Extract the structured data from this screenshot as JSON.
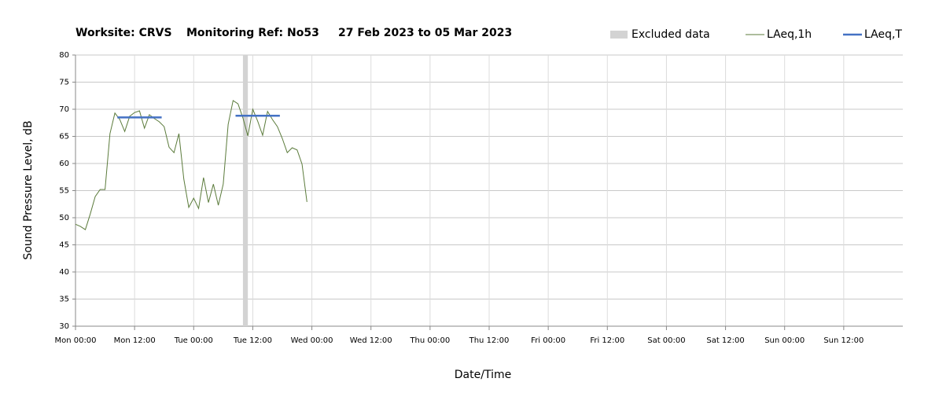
{
  "chart_data": {
    "type": "line",
    "title": [
      "Worksite: CRVS",
      "Monitoring Ref: No53",
      "27 Feb 2023 to 05 Mar 2023"
    ],
    "x_label": "Date/Time",
    "y_label": "Sound Pressure Level, dB",
    "xlim": [
      0,
      168
    ],
    "xticks": [
      {
        "value": 0,
        "label": "Mon 00:00"
      },
      {
        "value": 12,
        "label": "Mon 12:00"
      },
      {
        "value": 24,
        "label": "Tue 00:00"
      },
      {
        "value": 36,
        "label": "Tue 12:00"
      },
      {
        "value": 48,
        "label": "Wed 00:00"
      },
      {
        "value": 60,
        "label": "Wed 12:00"
      },
      {
        "value": 72,
        "label": "Thu 00:00"
      },
      {
        "value": 84,
        "label": "Thu 12:00"
      },
      {
        "value": 96,
        "label": "Fri 00:00"
      },
      {
        "value": 108,
        "label": "Fri 12:00"
      },
      {
        "value": 120,
        "label": "Sat 00:00"
      },
      {
        "value": 132,
        "label": "Sat 12:00"
      },
      {
        "value": 144,
        "label": "Sun 00:00"
      },
      {
        "value": 156,
        "label": "Sun 12:00"
      }
    ],
    "ylim": [
      30,
      80
    ],
    "yticks": [
      30,
      35,
      40,
      45,
      50,
      55,
      60,
      65,
      70,
      75,
      80
    ],
    "grid": true,
    "legend": "top-right",
    "excluded": {
      "name": "Excluded data",
      "color": "#d3d3d3",
      "x": [
        34,
        35
      ]
    },
    "series": [
      {
        "name": "LAeq,1h",
        "color": "#5b7b3b",
        "x": [
          0,
          1,
          2,
          3,
          4,
          5,
          6,
          7,
          8,
          9,
          10,
          11,
          12,
          13,
          14,
          15,
          16,
          17,
          18,
          19,
          20,
          21,
          22,
          23,
          24,
          25,
          26,
          27,
          28,
          29,
          30,
          31,
          32,
          33,
          34,
          35,
          36,
          37,
          38,
          39,
          40,
          41,
          42,
          43,
          44,
          45,
          46,
          47
        ],
        "values": [
          48.8,
          48.4,
          47.8,
          50.7,
          53.9,
          55.2,
          55.2,
          65.5,
          69.3,
          68.1,
          65.9,
          68.7,
          69.4,
          69.7,
          66.5,
          69.0,
          68.3,
          67.7,
          66.8,
          63.0,
          62.0,
          65.5,
          57.1,
          51.9,
          53.6,
          51.7,
          57.4,
          52.8,
          56.2,
          52.3,
          56.2,
          67.2,
          71.6,
          71.0,
          68.4,
          65.1,
          70.0,
          67.8,
          65.2,
          69.6,
          68.1,
          66.8,
          64.6,
          62.0,
          62.9,
          62.5,
          59.9,
          52.9
        ]
      },
      {
        "name": "LAeq,T",
        "color": "#4472c4",
        "x": [
          8.5,
          17.5,
          null,
          32.5,
          41.5
        ],
        "values": [
          68.5,
          68.5,
          null,
          68.8,
          68.8
        ]
      }
    ]
  }
}
